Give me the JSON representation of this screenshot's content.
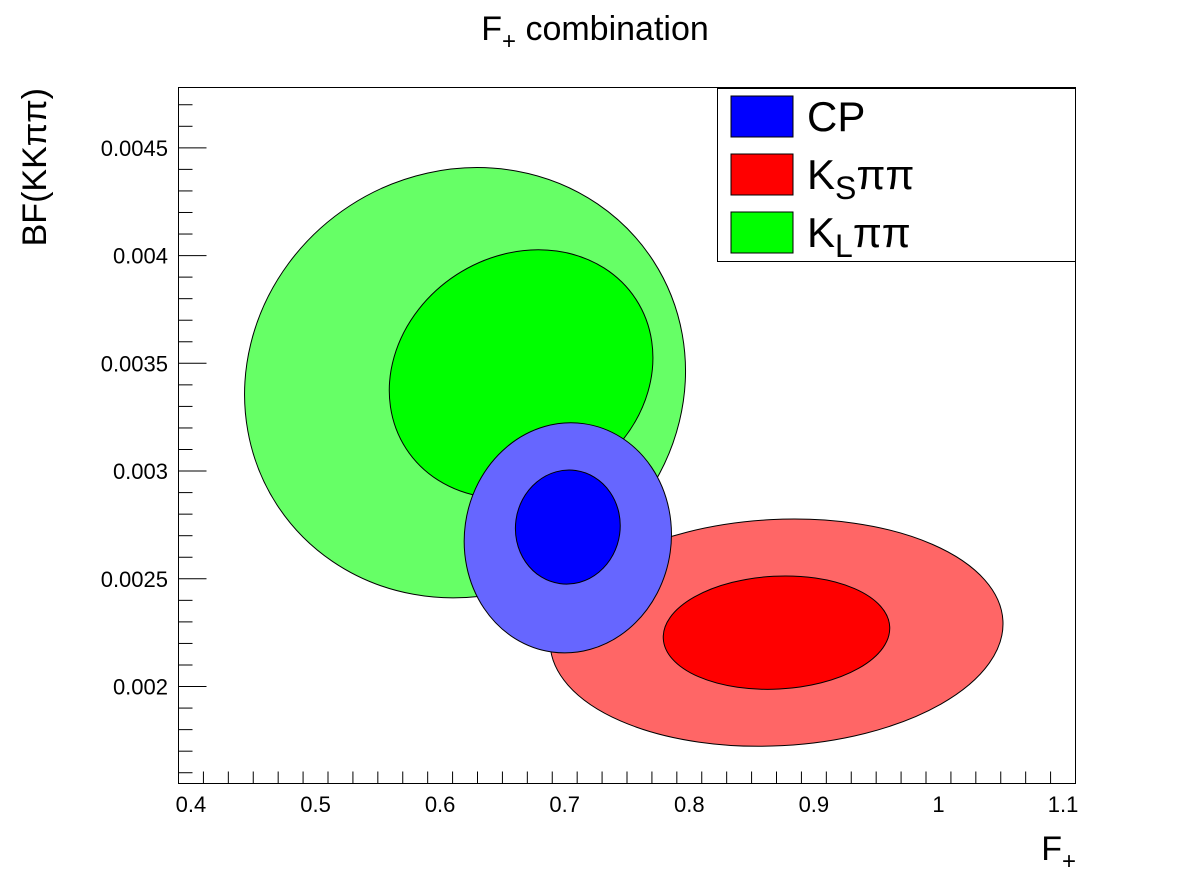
{
  "chart_data": {
    "type": "contour",
    "title": {
      "main": "F",
      "sub": "+",
      "rest": " combination"
    },
    "xlabel": {
      "main": "F",
      "sub": "+"
    },
    "ylabel": "BF(KKππ)",
    "xlim": [
      0.39,
      1.11
    ],
    "ylim": [
      0.00155,
      0.00478
    ],
    "x_ticks": [
      {
        "value": 0.4,
        "label": "0.4"
      },
      {
        "value": 0.5,
        "label": "0.5"
      },
      {
        "value": 0.6,
        "label": "0.6"
      },
      {
        "value": 0.7,
        "label": "0.7"
      },
      {
        "value": 0.8,
        "label": "0.8"
      },
      {
        "value": 0.9,
        "label": "0.9"
      },
      {
        "value": 1.0,
        "label": "1"
      },
      {
        "value": 1.1,
        "label": "1.1"
      }
    ],
    "y_ticks": [
      {
        "value": 0.002,
        "label": "0.002"
      },
      {
        "value": 0.0025,
        "label": "0.0025"
      },
      {
        "value": 0.003,
        "label": "0.003"
      },
      {
        "value": 0.0035,
        "label": "0.0035"
      },
      {
        "value": 0.004,
        "label": "0.004"
      },
      {
        "value": 0.0045,
        "label": "0.0045"
      }
    ],
    "grid": false,
    "legend_position": "top-right",
    "legend": [
      {
        "id": "cp",
        "main": "CP",
        "sub": "",
        "rest": "",
        "color": "#0000ff"
      },
      {
        "id": "ks",
        "main": "K",
        "sub": "S",
        "rest": "ππ",
        "color": "#ff0000"
      },
      {
        "id": "kl",
        "main": "K",
        "sub": "L",
        "rest": "ππ",
        "color": "#00ff00"
      }
    ],
    "regions": [
      {
        "series": "kl",
        "level": "outer",
        "color": "#66ff66",
        "center": [
          0.62,
          0.00341
        ],
        "semi_axes": [
          0.18,
          0.00098
        ],
        "angle": -33
      },
      {
        "series": "kl",
        "level": "inner",
        "color": "#00ff00",
        "center": [
          0.665,
          0.00345
        ],
        "semi_axes": [
          0.11,
          0.00055
        ],
        "angle": -33
      },
      {
        "series": "ks",
        "level": "outer",
        "color": "#ff6666",
        "center": [
          0.87,
          0.00225
        ],
        "semi_axes": [
          0.182,
          0.000525
        ],
        "angle": -3
      },
      {
        "series": "ks",
        "level": "inner",
        "color": "#ff0000",
        "center": [
          0.87,
          0.00225
        ],
        "semi_axes": [
          0.091,
          0.000262
        ],
        "angle": -3
      },
      {
        "series": "cp",
        "level": "outer",
        "color": "#6666ff",
        "center": [
          0.7025,
          0.00269
        ],
        "semi_axes": [
          0.083,
          0.000535
        ],
        "angle": 8
      },
      {
        "series": "cp",
        "level": "inner",
        "color": "#0000ff",
        "center": [
          0.7025,
          0.00274
        ],
        "semi_axes": [
          0.042,
          0.000265
        ],
        "angle": 8
      }
    ]
  }
}
